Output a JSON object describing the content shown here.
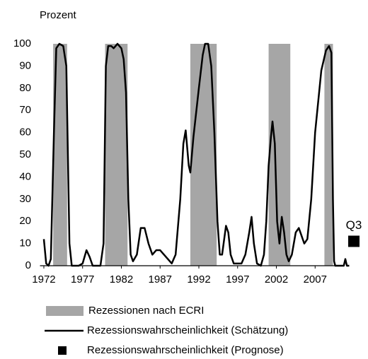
{
  "chart_data": {
    "type": "line",
    "y_label": "Prozent",
    "xlim": [
      1971.5,
      2012.5
    ],
    "xticks": [
      1972,
      1977,
      1982,
      1987,
      1992,
      1997,
      2002,
      2007
    ],
    "ylim": [
      0,
      100
    ],
    "yticks": [
      0,
      10,
      20,
      30,
      40,
      50,
      60,
      70,
      80,
      90,
      100
    ],
    "grid": false,
    "series": [
      {
        "name": "Rezessionen nach ECRI",
        "type": "band",
        "color": "#a6a6a6",
        "ranges": [
          [
            1973.2,
            1975.0
          ],
          [
            1979.9,
            1982.8
          ],
          [
            1990.9,
            1994.3
          ],
          [
            2001.0,
            2003.8
          ],
          [
            2008.2,
            2009.3
          ]
        ]
      },
      {
        "name": "Rezessionswahrscheinlichkeit (Schätzung)",
        "type": "line",
        "color": "#000000",
        "x": [
          1972.0,
          1972.3,
          1972.6,
          1972.9,
          1973.3,
          1973.6,
          1974.0,
          1974.5,
          1974.9,
          1975.3,
          1975.6,
          1976.5,
          1977.0,
          1977.5,
          1977.9,
          1978.3,
          1979.3,
          1979.7,
          1980.0,
          1980.3,
          1980.7,
          1981.0,
          1981.5,
          1982.0,
          1982.3,
          1982.6,
          1982.9,
          1983.2,
          1983.5,
          1984.0,
          1984.5,
          1985.0,
          1985.5,
          1986.0,
          1986.5,
          1987.0,
          1987.5,
          1988.0,
          1988.5,
          1989.0,
          1989.6,
          1990.0,
          1990.3,
          1990.7,
          1990.9,
          1991.3,
          1992.0,
          1992.5,
          1992.8,
          1993.2,
          1993.6,
          1994.0,
          1994.4,
          1994.7,
          1995.0,
          1995.5,
          1995.8,
          1996.1,
          1996.5,
          1997.5,
          1998.0,
          1998.5,
          1998.8,
          1999.1,
          1999.5,
          2000.0,
          2000.4,
          2000.7,
          2001.0,
          2001.3,
          2001.5,
          2001.8,
          2002.1,
          2002.4,
          2002.7,
          2003.0,
          2003.3,
          2003.6,
          2004.0,
          2004.5,
          2004.9,
          2005.3,
          2005.6,
          2006.0,
          2006.5,
          2007.0,
          2007.8,
          2008.4,
          2008.8,
          2009.1,
          2009.3,
          2009.45,
          2009.6,
          2009.8,
          2010.7,
          2010.9,
          2011.1,
          2011.4
        ],
        "values": [
          12,
          1,
          0,
          3,
          60,
          98,
          100,
          99,
          90,
          10,
          0,
          0,
          1,
          7,
          4,
          0,
          0,
          10,
          90,
          99,
          99,
          98,
          100,
          98,
          93,
          78,
          30,
          5,
          2,
          5,
          17,
          17,
          10,
          5,
          7,
          7,
          5,
          3,
          1,
          5,
          30,
          55,
          61,
          45,
          42,
          58,
          80,
          95,
          100,
          100,
          90,
          60,
          20,
          5,
          5,
          18,
          15,
          5,
          1,
          1,
          5,
          15,
          22,
          10,
          1,
          0,
          5,
          20,
          45,
          58,
          65,
          55,
          20,
          10,
          22,
          15,
          5,
          2,
          5,
          15,
          17,
          13,
          10,
          12,
          30,
          60,
          88,
          97,
          99,
          96,
          30,
          2,
          0,
          0,
          0,
          3,
          0,
          0
        ]
      },
      {
        "name": "Rezessionswahrscheinlichkeit (Prognose)",
        "type": "marker",
        "color": "#000000",
        "x": [
          2012.0
        ],
        "values": [
          11
        ],
        "point_labels": [
          "Q3"
        ]
      }
    ]
  }
}
